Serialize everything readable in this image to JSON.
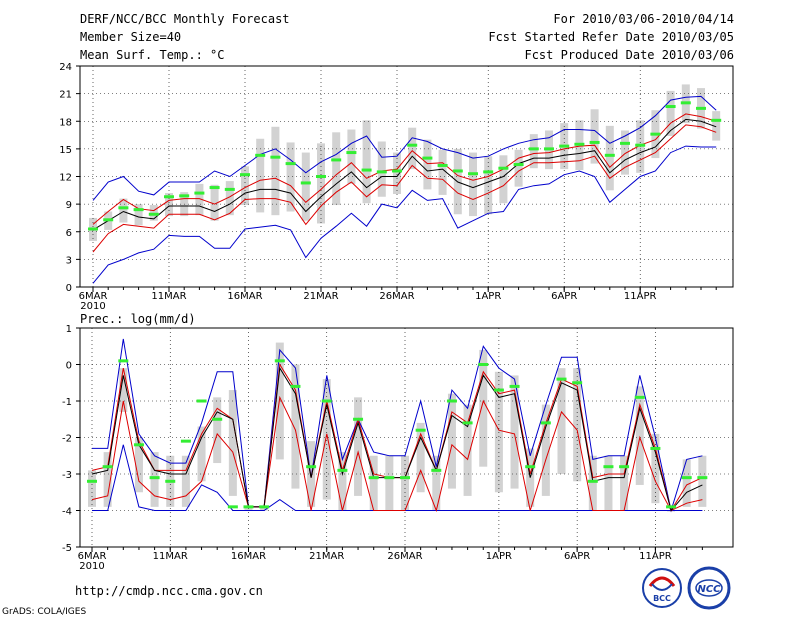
{
  "header": {
    "title": "DERF/NCC/BCC Monthly Forecast",
    "member_size": "Member Size=40",
    "variable": "Mean Surf. Temp.: °C",
    "period": "For 2010/03/06-2010/04/14",
    "fcst_started": "Fcst Started Refer Date 2010/03/05",
    "fcst_produced": "Fcst Produced Date 2010/03/06"
  },
  "panel2_label": "Prec.: log(mm/d)",
  "footer": {
    "url": "http://cmdp.ncc.cma.gov.cn",
    "credit": "GrADS: COLA/IGES",
    "logo1_text": "BCC",
    "logo2_text": "NCC"
  },
  "colors": {
    "box": "#d2d2d2",
    "mean": "#000000",
    "inner": "#dd0000",
    "outer": "#0000cc",
    "obs": "#33ee33",
    "grid": "#000000"
  },
  "chart_data": [
    {
      "type": "line",
      "title": "Mean Surf. Temp.: °C",
      "x_tick_labels": [
        "6MAR",
        "11MAR",
        "16MAR",
        "21MAR",
        "26MAR",
        "1APR",
        "6APR",
        "11APR"
      ],
      "x_tick_days": [
        0,
        5,
        10,
        15,
        20,
        26,
        31,
        36
      ],
      "x_year_label": "2010",
      "ylim": [
        0,
        24
      ],
      "yticks": [
        0,
        3,
        6,
        9,
        12,
        15,
        18,
        21,
        24
      ],
      "ylabel": "",
      "grid": true,
      "series": [
        {
          "name": "ensemble mean",
          "color": "black",
          "values": [
            6.2,
            7.2,
            8.2,
            7.6,
            7.4,
            8.8,
            8.8,
            8.8,
            8.2,
            9.0,
            10.2,
            10.6,
            10.6,
            10.2,
            8.2,
            9.8,
            11.2,
            12.5,
            10.8,
            12.0,
            12.0,
            14.2,
            12.6,
            12.8,
            11.4,
            10.8,
            11.4,
            12.0,
            13.4,
            14.0,
            14.0,
            14.3,
            14.5,
            14.8,
            12.4,
            13.8,
            14.6,
            15.2,
            17.0,
            18.2,
            18.0,
            17.4
          ]
        },
        {
          "name": "upper inner",
          "color": "red",
          "values": [
            6.8,
            8.2,
            9.5,
            8.5,
            8.3,
            9.4,
            9.6,
            9.6,
            9.0,
            9.8,
            10.8,
            11.6,
            11.8,
            11.0,
            9.2,
            10.6,
            12.2,
            13.5,
            11.8,
            12.6,
            12.8,
            14.8,
            13.4,
            13.5,
            12.1,
            11.6,
            12.0,
            12.8,
            14.0,
            14.5,
            14.6,
            15.0,
            15.3,
            15.4,
            13.0,
            14.5,
            15.4,
            16.0,
            17.8,
            18.8,
            18.5,
            18.0
          ]
        },
        {
          "name": "lower inner",
          "color": "red",
          "values": [
            3.8,
            5.8,
            6.8,
            6.6,
            6.4,
            7.9,
            7.9,
            7.9,
            7.3,
            8.0,
            9.5,
            9.6,
            9.6,
            9.2,
            6.8,
            8.8,
            10.3,
            11.4,
            9.8,
            11.1,
            11.0,
            13.2,
            11.8,
            11.7,
            10.2,
            9.5,
            10.2,
            11.0,
            12.6,
            13.5,
            13.5,
            13.6,
            13.7,
            14.2,
            11.8,
            13.0,
            13.8,
            14.6,
            16.1,
            17.6,
            17.4,
            16.8
          ]
        },
        {
          "name": "upper outer",
          "color": "blue",
          "values": [
            9.4,
            11.4,
            12.0,
            10.4,
            10.0,
            11.4,
            11.4,
            11.4,
            12.6,
            12.0,
            13.2,
            14.4,
            15.0,
            13.8,
            12.4,
            13.6,
            14.4,
            15.6,
            16.4,
            14.1,
            14.2,
            16.2,
            15.8,
            15.0,
            14.6,
            14.0,
            14.2,
            15.0,
            15.6,
            16.0,
            16.2,
            17.1,
            17.1,
            17.0,
            15.6,
            16.4,
            17.3,
            18.6,
            20.3,
            20.6,
            20.7,
            19.2
          ]
        },
        {
          "name": "lower outer",
          "color": "blue",
          "values": [
            0.4,
            2.4,
            3.0,
            3.7,
            4.1,
            5.6,
            5.5,
            5.5,
            4.2,
            4.2,
            6.3,
            6.5,
            6.7,
            6.2,
            3.2,
            5.3,
            6.6,
            8.0,
            6.6,
            9.0,
            8.6,
            10.5,
            9.4,
            9.6,
            6.4,
            7.2,
            8.0,
            8.2,
            10.6,
            11.0,
            11.2,
            12.2,
            12.6,
            12.0,
            9.2,
            10.6,
            12.0,
            12.6,
            14.6,
            15.3,
            15.2,
            15.2
          ]
        },
        {
          "name": "observed",
          "color": "green",
          "values": [
            6.3,
            7.3,
            8.6,
            8.4,
            7.9,
            9.8,
            9.9,
            10.2,
            10.8,
            10.6,
            12.2,
            14.3,
            14.1,
            13.4,
            11.3,
            12.0,
            13.8,
            14.6,
            12.7,
            12.5,
            12.6,
            15.4,
            14.0,
            13.2,
            12.6,
            12.3,
            12.5,
            12.9,
            13.3,
            15.0,
            15.0,
            15.3,
            15.5,
            15.7,
            14.3,
            15.6,
            15.4,
            16.6,
            19.6,
            20.0,
            19.4,
            18.1
          ]
        },
        {
          "name": "box top",
          "color": "grey",
          "values": [
            7.5,
            8.2,
            9.6,
            9.0,
            8.9,
            10.2,
            10.3,
            11.2,
            11.1,
            11.5,
            13.1,
            16.1,
            17.4,
            15.7,
            14.6,
            15.6,
            16.8,
            17.1,
            18.1,
            15.8,
            14.6,
            17.3,
            16.0,
            14.9,
            15.0,
            14.6,
            14.2,
            14.3,
            14.9,
            16.6,
            17.0,
            17.8,
            18.1,
            19.3,
            17.5,
            17.0,
            18.1,
            19.2,
            21.3,
            22.0,
            21.6,
            19.1
          ]
        },
        {
          "name": "box bottom",
          "color": "grey",
          "values": [
            5.0,
            6.2,
            7.0,
            6.7,
            7.2,
            7.7,
            7.7,
            7.8,
            7.2,
            7.8,
            8.9,
            8.1,
            7.8,
            8.2,
            7.2,
            6.9,
            8.9,
            11.2,
            9.1,
            9.8,
            10.1,
            12.8,
            10.6,
            10.0,
            7.9,
            7.7,
            7.9,
            9.1,
            10.9,
            12.9,
            12.8,
            12.8,
            12.7,
            13.4,
            10.5,
            12.2,
            12.4,
            14.0,
            16.4,
            17.8,
            17.2,
            15.9
          ]
        }
      ]
    },
    {
      "type": "line",
      "title": "Prec.: log(mm/d)",
      "x_tick_labels": [
        "6MAR",
        "11MAR",
        "16MAR",
        "21MAR",
        "26MAR",
        "1APR",
        "6APR",
        "11APR"
      ],
      "x_tick_days": [
        0,
        5,
        10,
        15,
        20,
        26,
        31,
        36
      ],
      "x_year_label": "2010",
      "ylim": [
        -5,
        1
      ],
      "yticks": [
        -5,
        -4,
        -3,
        -2,
        -1,
        0,
        1
      ],
      "ylabel": "",
      "grid": true,
      "series": [
        {
          "name": "ensemble mean",
          "color": "black",
          "values": [
            -3.0,
            -2.9,
            -0.3,
            -2.2,
            -2.9,
            -3.0,
            -3.0,
            -2.0,
            -1.3,
            -1.5,
            -3.9,
            -3.9,
            -0.1,
            -0.8,
            -3.1,
            -1.1,
            -3.0,
            -1.6,
            -3.1,
            -3.1,
            -3.1,
            -2.0,
            -2.9,
            -1.4,
            -1.7,
            -0.3,
            -0.9,
            -0.8,
            -3.1,
            -1.7,
            -0.5,
            -0.7,
            -3.2,
            -3.1,
            -3.1,
            -1.2,
            -2.4,
            -4.0,
            -3.5,
            -3.3
          ]
        },
        {
          "name": "upper inner",
          "color": "red",
          "values": [
            -2.9,
            -2.8,
            -0.1,
            -2.1,
            -2.9,
            -2.9,
            -2.9,
            -1.9,
            -1.2,
            -1.5,
            -3.9,
            -3.9,
            0.0,
            -0.7,
            -3.1,
            -1.0,
            -2.9,
            -1.5,
            -3.0,
            -3.1,
            -3.1,
            -1.9,
            -2.9,
            -1.3,
            -1.6,
            -0.2,
            -0.8,
            -0.7,
            -3.0,
            -1.6,
            -0.4,
            -0.6,
            -3.1,
            -3.0,
            -3.0,
            -1.1,
            -2.3,
            -4.0,
            -3.3,
            -3.1
          ]
        },
        {
          "name": "lower inner",
          "color": "red",
          "values": [
            -3.7,
            -3.6,
            -1.0,
            -3.2,
            -3.6,
            -3.7,
            -3.6,
            -3.2,
            -1.9,
            -2.4,
            -3.9,
            -3.9,
            -0.9,
            -1.8,
            -4.0,
            -1.9,
            -4.0,
            -2.4,
            -4.0,
            -4.0,
            -4.0,
            -2.9,
            -4.0,
            -2.2,
            -2.6,
            -1.0,
            -1.8,
            -1.9,
            -4.0,
            -2.6,
            -1.3,
            -1.8,
            -4.0,
            -4.0,
            -4.0,
            -2.0,
            -3.2,
            -4.0,
            -3.8,
            -3.7
          ]
        },
        {
          "name": "upper outer",
          "color": "blue",
          "values": [
            -2.3,
            -2.3,
            0.7,
            -1.9,
            -2.5,
            -2.7,
            -2.7,
            -1.6,
            -0.2,
            -0.2,
            -3.9,
            -3.9,
            0.4,
            -0.1,
            -3.1,
            -0.3,
            -2.6,
            -1.5,
            -2.4,
            -2.5,
            -2.5,
            -1.0,
            -2.8,
            -0.7,
            -1.2,
            0.5,
            -0.1,
            -0.4,
            -2.5,
            -1.1,
            0.2,
            0.2,
            -2.6,
            -2.5,
            -2.5,
            -0.3,
            -2.0,
            -4.0,
            -2.6,
            -2.5
          ]
        },
        {
          "name": "lower outer",
          "color": "blue",
          "values": [
            -4.0,
            -4.0,
            -2.2,
            -3.9,
            -4.0,
            -4.0,
            -4.0,
            -3.3,
            -3.5,
            -4.0,
            -4.0,
            -4.0,
            -3.7,
            -4.0,
            -4.0,
            -4.0,
            -4.0,
            -4.0,
            -4.0,
            -4.0,
            -4.0,
            -4.0,
            -4.0,
            -4.0,
            -4.0,
            -4.0,
            -4.0,
            -4.0,
            -4.0,
            -4.0,
            -4.0,
            -4.0,
            -4.0,
            -4.0,
            -4.0,
            -4.0,
            -4.0,
            -4.0,
            -4.0,
            -4.0
          ]
        },
        {
          "name": "observed",
          "color": "green",
          "values": [
            -3.2,
            -2.8,
            0.1,
            -2.2,
            -3.1,
            -3.2,
            -2.1,
            -1.0,
            -1.5,
            -3.9,
            -3.9,
            -3.9,
            0.1,
            -0.6,
            -2.8,
            -1.0,
            -2.9,
            -1.5,
            -3.1,
            -3.1,
            -3.1,
            -1.8,
            -2.9,
            -1.0,
            -1.6,
            0.0,
            -0.7,
            -0.6,
            -2.8,
            -1.6,
            -0.4,
            -0.5,
            -3.2,
            -2.8,
            -2.8,
            -0.9,
            -2.3,
            -3.9,
            -3.1,
            -3.1
          ]
        },
        {
          "name": "box top",
          "color": "grey",
          "values": [
            -2.9,
            -2.4,
            -0.1,
            -2.0,
            -2.4,
            -2.5,
            -2.5,
            -1.7,
            -0.9,
            -0.7,
            -3.9,
            -3.9,
            0.6,
            0.0,
            -2.1,
            -0.4,
            -2.4,
            -0.9,
            -2.5,
            -2.5,
            -2.5,
            -1.6,
            -2.5,
            -0.8,
            -1.1,
            0.4,
            -0.2,
            -0.3,
            -2.3,
            -1.1,
            -0.1,
            -0.1,
            -2.5,
            -2.5,
            -2.5,
            -0.6,
            -1.9,
            -4.0,
            -2.6,
            -2.5
          ]
        },
        {
          "name": "box bottom",
          "color": "grey",
          "values": [
            -3.9,
            -3.9,
            -1.3,
            -3.5,
            -3.9,
            -3.9,
            -3.9,
            -3.2,
            -2.7,
            -3.6,
            -4.0,
            -4.0,
            -2.6,
            -3.4,
            -3.9,
            -3.7,
            -4.0,
            -3.6,
            -4.0,
            -4.0,
            -4.0,
            -3.5,
            -4.0,
            -3.4,
            -3.6,
            -2.8,
            -3.5,
            -3.4,
            -3.9,
            -3.6,
            -3.0,
            -3.2,
            -4.0,
            -4.0,
            -4.0,
            -3.3,
            -3.8,
            -4.0,
            -3.9,
            -3.9
          ]
        }
      ]
    }
  ]
}
